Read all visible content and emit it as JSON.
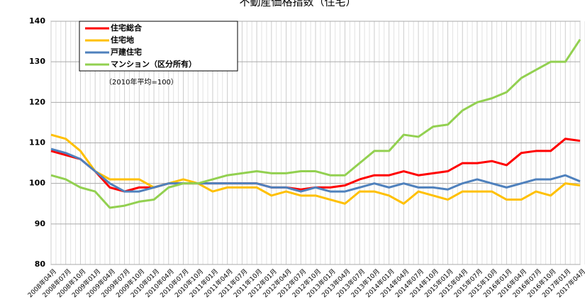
{
  "chart_data": {
    "type": "line",
    "title": "不動産価格指数（住宅）",
    "annotation": "（2010年平均=100）",
    "categories": [
      "2008年04月",
      "2008年07月",
      "2008年10月",
      "2009年01月",
      "2009年04月",
      "2009年07月",
      "2009年10月",
      "2010年01月",
      "2010年04月",
      "2010年07月",
      "2010年10月",
      "2011年01月",
      "2011年04月",
      "2011年07月",
      "2011年10月",
      "2012年01月",
      "2012年04月",
      "2012年07月",
      "2012年10月",
      "2013年01月",
      "2013年04月",
      "2013年07月",
      "2013年10月",
      "2014年01月",
      "2014年04月",
      "2014年07月",
      "2014年10月",
      "2015年01月",
      "2015年04月",
      "2015年07月",
      "2015年10月",
      "2016年01月",
      "2016年04月",
      "2016年07月",
      "2016年10月",
      "2017年01月",
      "2017年04月"
    ],
    "series": [
      {
        "name": "住宅総合",
        "color": "#ff0000",
        "values": [
          108,
          107,
          106,
          103,
          99,
          98,
          99,
          99,
          100,
          100,
          100,
          100,
          100,
          100,
          100,
          99,
          99,
          98.5,
          99,
          99,
          99.5,
          101,
          102,
          102,
          103,
          102,
          102.5,
          103,
          105,
          105,
          105.5,
          104.5,
          107.5,
          108,
          108,
          111,
          110.5
        ]
      },
      {
        "name": "住宅地",
        "color": "#ffc000",
        "values": [
          112,
          111,
          108,
          103,
          101,
          101,
          101,
          99,
          100,
          101,
          100,
          98,
          99,
          99,
          99,
          97,
          98,
          97,
          97,
          96,
          95,
          98,
          98,
          97,
          95,
          98,
          97,
          96,
          98,
          98,
          98,
          96,
          96,
          98,
          97,
          100,
          99.5
        ]
      },
      {
        "name": "戸建住宅",
        "color": "#4f81bd",
        "values": [
          108.5,
          107.5,
          106,
          103,
          100,
          98,
          98,
          99,
          100,
          100,
          100,
          100,
          100,
          100,
          100,
          99,
          99,
          98,
          99,
          98,
          98,
          99,
          100,
          99,
          100,
          99,
          99,
          98.5,
          100,
          101,
          100,
          99,
          100,
          101,
          101,
          102,
          100.5
        ]
      },
      {
        "name": "マンション（区分所有）",
        "color": "#92d050",
        "values": [
          102,
          101,
          99,
          98,
          94,
          94.5,
          95.5,
          96,
          99,
          100,
          100,
          101,
          102,
          102.5,
          103,
          102.5,
          102.5,
          103,
          103,
          102,
          102,
          105,
          108,
          108,
          112,
          111.5,
          114,
          114.5,
          118,
          120,
          121,
          122.5,
          126,
          128,
          130,
          130,
          135.5
        ]
      }
    ],
    "ylim": [
      80,
      140
    ],
    "yticks": [
      80,
      90,
      100,
      110,
      120,
      130,
      140
    ],
    "grid": true,
    "legend": "top-left"
  }
}
